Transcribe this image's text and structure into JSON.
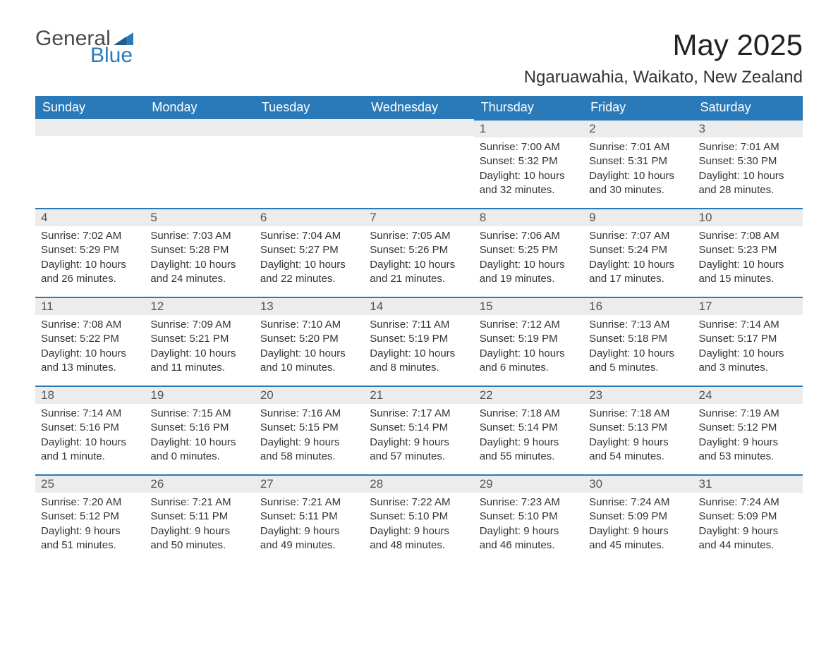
{
  "logo": {
    "text_general": "General",
    "text_blue": "Blue",
    "flag_color": "#2a7ab9"
  },
  "header": {
    "title": "May 2025",
    "location": "Ngaruawahia, Waikato, New Zealand"
  },
  "colors": {
    "header_bg": "#2a7ab9",
    "header_text": "#ffffff",
    "daynum_bg": "#ececec",
    "daynum_border": "#2a7ab9",
    "body_text": "#333333",
    "page_bg": "#ffffff"
  },
  "day_headers": [
    "Sunday",
    "Monday",
    "Tuesday",
    "Wednesday",
    "Thursday",
    "Friday",
    "Saturday"
  ],
  "weeks": [
    [
      null,
      null,
      null,
      null,
      {
        "n": "1",
        "sr": "Sunrise: 7:00 AM",
        "ss": "Sunset: 5:32 PM",
        "d1": "Daylight: 10 hours",
        "d2": "and 32 minutes."
      },
      {
        "n": "2",
        "sr": "Sunrise: 7:01 AM",
        "ss": "Sunset: 5:31 PM",
        "d1": "Daylight: 10 hours",
        "d2": "and 30 minutes."
      },
      {
        "n": "3",
        "sr": "Sunrise: 7:01 AM",
        "ss": "Sunset: 5:30 PM",
        "d1": "Daylight: 10 hours",
        "d2": "and 28 minutes."
      }
    ],
    [
      {
        "n": "4",
        "sr": "Sunrise: 7:02 AM",
        "ss": "Sunset: 5:29 PM",
        "d1": "Daylight: 10 hours",
        "d2": "and 26 minutes."
      },
      {
        "n": "5",
        "sr": "Sunrise: 7:03 AM",
        "ss": "Sunset: 5:28 PM",
        "d1": "Daylight: 10 hours",
        "d2": "and 24 minutes."
      },
      {
        "n": "6",
        "sr": "Sunrise: 7:04 AM",
        "ss": "Sunset: 5:27 PM",
        "d1": "Daylight: 10 hours",
        "d2": "and 22 minutes."
      },
      {
        "n": "7",
        "sr": "Sunrise: 7:05 AM",
        "ss": "Sunset: 5:26 PM",
        "d1": "Daylight: 10 hours",
        "d2": "and 21 minutes."
      },
      {
        "n": "8",
        "sr": "Sunrise: 7:06 AM",
        "ss": "Sunset: 5:25 PM",
        "d1": "Daylight: 10 hours",
        "d2": "and 19 minutes."
      },
      {
        "n": "9",
        "sr": "Sunrise: 7:07 AM",
        "ss": "Sunset: 5:24 PM",
        "d1": "Daylight: 10 hours",
        "d2": "and 17 minutes."
      },
      {
        "n": "10",
        "sr": "Sunrise: 7:08 AM",
        "ss": "Sunset: 5:23 PM",
        "d1": "Daylight: 10 hours",
        "d2": "and 15 minutes."
      }
    ],
    [
      {
        "n": "11",
        "sr": "Sunrise: 7:08 AM",
        "ss": "Sunset: 5:22 PM",
        "d1": "Daylight: 10 hours",
        "d2": "and 13 minutes."
      },
      {
        "n": "12",
        "sr": "Sunrise: 7:09 AM",
        "ss": "Sunset: 5:21 PM",
        "d1": "Daylight: 10 hours",
        "d2": "and 11 minutes."
      },
      {
        "n": "13",
        "sr": "Sunrise: 7:10 AM",
        "ss": "Sunset: 5:20 PM",
        "d1": "Daylight: 10 hours",
        "d2": "and 10 minutes."
      },
      {
        "n": "14",
        "sr": "Sunrise: 7:11 AM",
        "ss": "Sunset: 5:19 PM",
        "d1": "Daylight: 10 hours",
        "d2": "and 8 minutes."
      },
      {
        "n": "15",
        "sr": "Sunrise: 7:12 AM",
        "ss": "Sunset: 5:19 PM",
        "d1": "Daylight: 10 hours",
        "d2": "and 6 minutes."
      },
      {
        "n": "16",
        "sr": "Sunrise: 7:13 AM",
        "ss": "Sunset: 5:18 PM",
        "d1": "Daylight: 10 hours",
        "d2": "and 5 minutes."
      },
      {
        "n": "17",
        "sr": "Sunrise: 7:14 AM",
        "ss": "Sunset: 5:17 PM",
        "d1": "Daylight: 10 hours",
        "d2": "and 3 minutes."
      }
    ],
    [
      {
        "n": "18",
        "sr": "Sunrise: 7:14 AM",
        "ss": "Sunset: 5:16 PM",
        "d1": "Daylight: 10 hours",
        "d2": "and 1 minute."
      },
      {
        "n": "19",
        "sr": "Sunrise: 7:15 AM",
        "ss": "Sunset: 5:16 PM",
        "d1": "Daylight: 10 hours",
        "d2": "and 0 minutes."
      },
      {
        "n": "20",
        "sr": "Sunrise: 7:16 AM",
        "ss": "Sunset: 5:15 PM",
        "d1": "Daylight: 9 hours",
        "d2": "and 58 minutes."
      },
      {
        "n": "21",
        "sr": "Sunrise: 7:17 AM",
        "ss": "Sunset: 5:14 PM",
        "d1": "Daylight: 9 hours",
        "d2": "and 57 minutes."
      },
      {
        "n": "22",
        "sr": "Sunrise: 7:18 AM",
        "ss": "Sunset: 5:14 PM",
        "d1": "Daylight: 9 hours",
        "d2": "and 55 minutes."
      },
      {
        "n": "23",
        "sr": "Sunrise: 7:18 AM",
        "ss": "Sunset: 5:13 PM",
        "d1": "Daylight: 9 hours",
        "d2": "and 54 minutes."
      },
      {
        "n": "24",
        "sr": "Sunrise: 7:19 AM",
        "ss": "Sunset: 5:12 PM",
        "d1": "Daylight: 9 hours",
        "d2": "and 53 minutes."
      }
    ],
    [
      {
        "n": "25",
        "sr": "Sunrise: 7:20 AM",
        "ss": "Sunset: 5:12 PM",
        "d1": "Daylight: 9 hours",
        "d2": "and 51 minutes."
      },
      {
        "n": "26",
        "sr": "Sunrise: 7:21 AM",
        "ss": "Sunset: 5:11 PM",
        "d1": "Daylight: 9 hours",
        "d2": "and 50 minutes."
      },
      {
        "n": "27",
        "sr": "Sunrise: 7:21 AM",
        "ss": "Sunset: 5:11 PM",
        "d1": "Daylight: 9 hours",
        "d2": "and 49 minutes."
      },
      {
        "n": "28",
        "sr": "Sunrise: 7:22 AM",
        "ss": "Sunset: 5:10 PM",
        "d1": "Daylight: 9 hours",
        "d2": "and 48 minutes."
      },
      {
        "n": "29",
        "sr": "Sunrise: 7:23 AM",
        "ss": "Sunset: 5:10 PM",
        "d1": "Daylight: 9 hours",
        "d2": "and 46 minutes."
      },
      {
        "n": "30",
        "sr": "Sunrise: 7:24 AM",
        "ss": "Sunset: 5:09 PM",
        "d1": "Daylight: 9 hours",
        "d2": "and 45 minutes."
      },
      {
        "n": "31",
        "sr": "Sunrise: 7:24 AM",
        "ss": "Sunset: 5:09 PM",
        "d1": "Daylight: 9 hours",
        "d2": "and 44 minutes."
      }
    ]
  ]
}
